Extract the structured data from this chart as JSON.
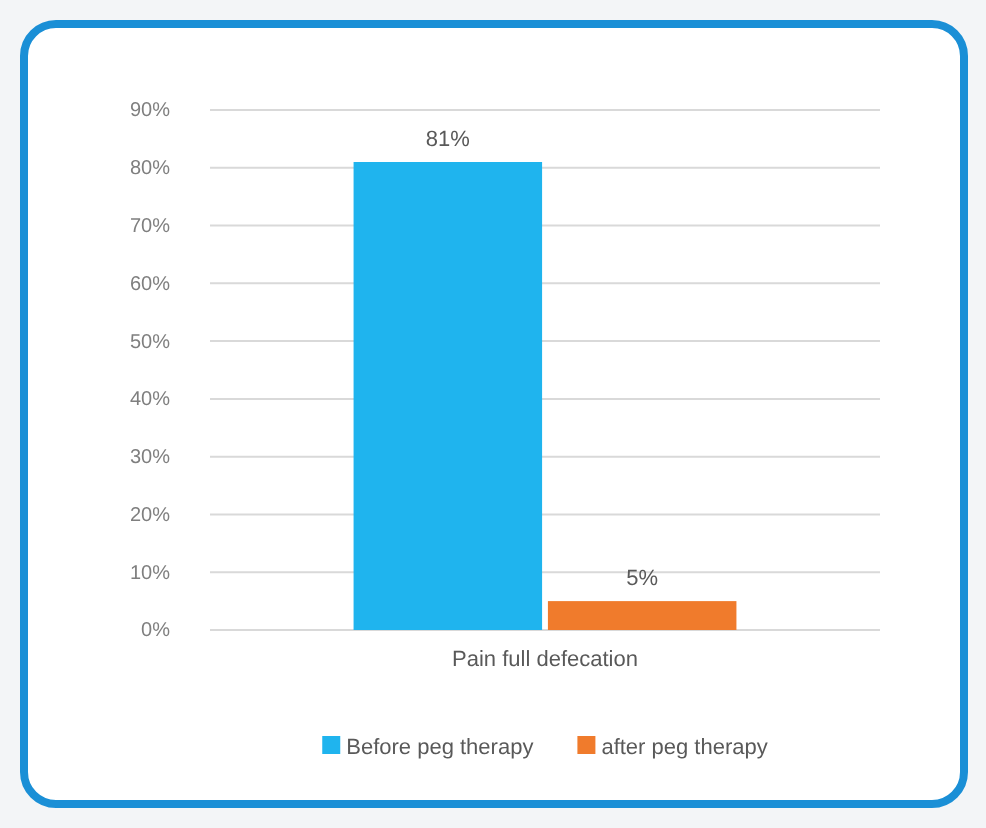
{
  "chart_data": {
    "type": "bar",
    "categories": [
      "Pain full defecation"
    ],
    "series": [
      {
        "name": "Before peg therapy",
        "color": "#1fb4ee",
        "values": [
          81
        ],
        "value_labels": [
          "81%"
        ]
      },
      {
        "name": "after peg therapy",
        "color": "#f07b2c",
        "values": [
          5
        ],
        "value_labels": [
          "5%"
        ]
      }
    ],
    "ylim": [
      0,
      90
    ],
    "yticks": [
      {
        "value": 0,
        "label": "0%"
      },
      {
        "value": 10,
        "label": "10%"
      },
      {
        "value": 20,
        "label": "20%"
      },
      {
        "value": 30,
        "label": "30%"
      },
      {
        "value": 40,
        "label": "40%"
      },
      {
        "value": 50,
        "label": "50%"
      },
      {
        "value": 60,
        "label": "60%"
      },
      {
        "value": 70,
        "label": "70%"
      },
      {
        "value": 80,
        "label": "80%"
      },
      {
        "value": 90,
        "label": "90%"
      }
    ],
    "grid": "y",
    "legend": "bottom"
  }
}
